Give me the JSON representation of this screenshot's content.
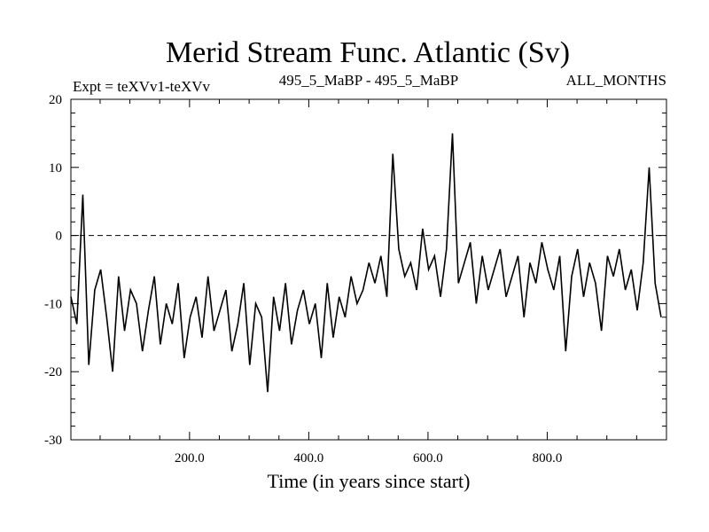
{
  "chart_data": {
    "type": "line",
    "title": "Merid Stream Func. Atlantic (Sv)",
    "subtitle_left": "Expt = teXVv1-teXVv",
    "subtitle_center": "495_5_MaBP - 495_5_MaBP",
    "subtitle_right": "ALL_MONTHS",
    "xlabel": "Time (in years since start)",
    "ylabel": "",
    "xlim": [
      1,
      1000
    ],
    "ylim": [
      -30,
      20
    ],
    "x_ticks": [
      200,
      400,
      600,
      800
    ],
    "x_tick_labels": [
      "200.0",
      "400.0",
      "600.0",
      "800.0"
    ],
    "y_ticks": [
      20,
      10,
      0,
      -10,
      -20,
      -30
    ],
    "y_tick_labels": [
      "20",
      "10",
      "0",
      "-10",
      "-20",
      "-30"
    ],
    "zero_line": true,
    "grid": false,
    "line_color": "#000000",
    "series": [
      {
        "name": "teXVv1-teXVv",
        "x_start": 1,
        "x_step": 10,
        "values": [
          -9,
          -13,
          6,
          -19,
          -8,
          -5,
          -12,
          -20,
          -6,
          -14,
          -8,
          -10,
          -17,
          -11,
          -6,
          -16,
          -10,
          -13,
          -7,
          -18,
          -12,
          -9,
          -15,
          -6,
          -14,
          -11,
          -8,
          -17,
          -13,
          -7,
          -19,
          -10,
          -12,
          -23,
          -9,
          -14,
          -7,
          -16,
          -11,
          -8,
          -13,
          -10,
          -18,
          -7,
          -15,
          -9,
          -12,
          -6,
          -10,
          -8,
          -4,
          -7,
          -3,
          -9,
          12,
          -2,
          -6,
          -4,
          -8,
          1,
          -5,
          -3,
          -9,
          -2,
          15,
          -7,
          -4,
          -1,
          -10,
          -3,
          -8,
          -5,
          -2,
          -9,
          -6,
          -3,
          -12,
          -4,
          -7,
          -1,
          -5,
          -8,
          -3,
          -17,
          -6,
          -2,
          -9,
          -4,
          -7,
          -14,
          -3,
          -6,
          -2,
          -8,
          -5,
          -11,
          -4,
          10,
          -7,
          -12
        ]
      }
    ]
  }
}
